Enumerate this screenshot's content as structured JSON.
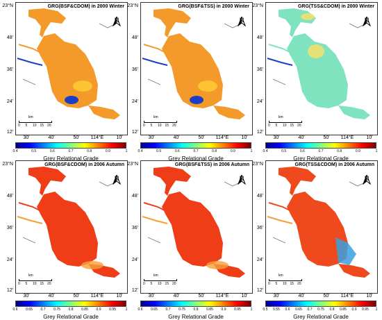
{
  "panels": [
    {
      "title": "GRG(BSF&CDOM) in 2000 Winter",
      "lat_labels": [
        "23°N",
        "48'",
        "36'",
        "24'",
        "12'"
      ],
      "lon_labels": [
        "30'",
        "40'",
        "50'",
        "114°E",
        "10'"
      ],
      "colorbar_ticks": [
        "0.4",
        "0.5",
        "0.6",
        "0.7",
        "0.8",
        "0.9",
        "1"
      ],
      "colorbar_label": "Grey Relational Grade",
      "scalebar_unit": "km",
      "scalebar_ticks": [
        "0",
        "5",
        "10",
        "15",
        "20"
      ],
      "north": "N",
      "palette": "winter-bsf-cdom"
    },
    {
      "title": "GRG(BSF&TSS) in 2000 Winter",
      "lat_labels": [
        "23°N",
        "48'",
        "36'",
        "24'",
        "12'"
      ],
      "lon_labels": [
        "30'",
        "40'",
        "50'",
        "114°E",
        "10'"
      ],
      "colorbar_ticks": [
        "0.4",
        "0.5",
        "0.6",
        "0.7",
        "0.8",
        "0.9",
        "1"
      ],
      "colorbar_label": "Grey Relational Grade",
      "scalebar_unit": "km",
      "scalebar_ticks": [
        "0",
        "5",
        "10",
        "15",
        "20"
      ],
      "north": "N",
      "palette": "winter-bsf-tss"
    },
    {
      "title": "GRG(TSS&CDOM) in 2000 Winter",
      "lat_labels": [
        "23°N",
        "48'",
        "36'",
        "24'",
        "12'"
      ],
      "lon_labels": [
        "30'",
        "40'",
        "50'",
        "114°E",
        "10'"
      ],
      "colorbar_ticks": [
        "0.4",
        "0.5",
        "0.6",
        "0.7",
        "0.8",
        "0.9",
        "1"
      ],
      "colorbar_label": "Grey Relational Grade",
      "scalebar_unit": "km",
      "scalebar_ticks": [
        "0",
        "5",
        "10",
        "15",
        "20"
      ],
      "north": "N",
      "palette": "winter-tss-cdom"
    },
    {
      "title": "GRG(BSF&CDOM) in 2006 Autumn",
      "lat_labels": [
        "23°N",
        "48'",
        "36'",
        "24'",
        "12'"
      ],
      "lon_labels": [
        "30'",
        "40'",
        "50'",
        "114°E",
        "10'"
      ],
      "colorbar_ticks": [
        "0.6",
        "0.65",
        "0.7",
        "0.75",
        "0.8",
        "0.85",
        "0.9",
        "0.95",
        "1"
      ],
      "colorbar_label": "Grey Relational Grade",
      "scalebar_unit": "km",
      "scalebar_ticks": [
        "0",
        "5",
        "10",
        "15",
        "20"
      ],
      "north": "N",
      "palette": "autumn-bsf-cdom"
    },
    {
      "title": "GRG(BSF&TSS) in 2006 Autumn",
      "lat_labels": [
        "23°N",
        "48'",
        "36'",
        "24'",
        "12'"
      ],
      "lon_labels": [
        "30'",
        "40'",
        "50'",
        "114°E",
        "10'"
      ],
      "colorbar_ticks": [
        "0.6",
        "0.65",
        "0.7",
        "0.75",
        "0.8",
        "0.85",
        "0.9",
        "0.95",
        "1"
      ],
      "colorbar_label": "Grey Relational Grade",
      "scalebar_unit": "km",
      "scalebar_ticks": [
        "0",
        "5",
        "10",
        "15",
        "20"
      ],
      "north": "N",
      "palette": "autumn-bsf-tss"
    },
    {
      "title": "GRG(TSS&CDOM) in 2006 Autumn",
      "lat_labels": [
        "23°N",
        "48'",
        "36'",
        "24'",
        "12'"
      ],
      "lon_labels": [
        "30'",
        "40'",
        "50'",
        "114°E",
        "10'"
      ],
      "colorbar_ticks": [
        "0.5",
        "0.55",
        "0.6",
        "0.65",
        "0.7",
        "0.75",
        "0.8",
        "0.85",
        "0.9",
        "0.95",
        "1"
      ],
      "colorbar_label": "Grey Relational Grade",
      "scalebar_unit": "km",
      "scalebar_ticks": [
        "0",
        "5",
        "10",
        "15",
        "20"
      ],
      "north": "N",
      "palette": "autumn-tss-cdom"
    }
  ],
  "colors": {
    "jet": [
      "#00008f",
      "#0000ff",
      "#0080ff",
      "#00ffff",
      "#80ff80",
      "#ffff00",
      "#ff8000",
      "#ff0000",
      "#800000"
    ],
    "winter_fill": "#f39a2a",
    "winter_tss_cdom_fill": "#7fe3c0",
    "autumn_fill": "#ef3d17",
    "autumn_tss_cdom_fill": "#ee4a1d",
    "channel_blue": "#1a3fc6"
  }
}
